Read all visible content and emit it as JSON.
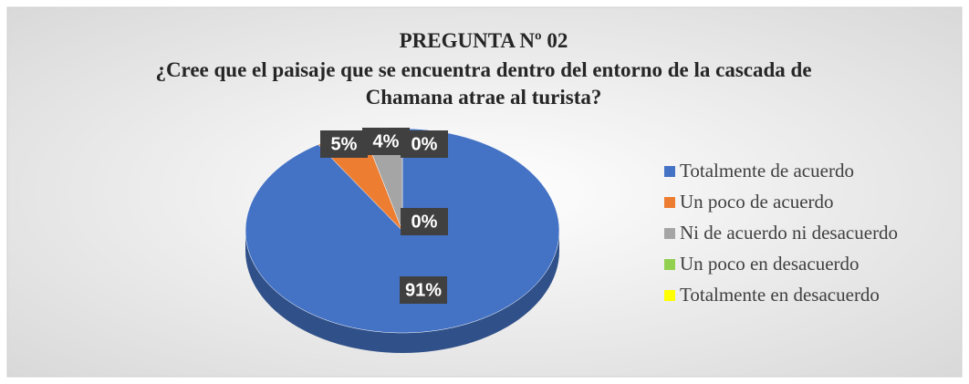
{
  "chart_data": {
    "type": "pie3d",
    "title": "PREGUNTA Nº 02",
    "subtitle": "¿Cree que el paisaje que se encuentra dentro del entorno de la cascada de Chamana atrae al turista?",
    "categories": [
      "Totalmente de acuerdo",
      "Un poco de acuerdo",
      "Ni de acuerdo ni desacuerdo",
      "Un poco en desacuerdo",
      "Totalmente en desacuerdo"
    ],
    "values": [
      91,
      5,
      4,
      0,
      0
    ],
    "value_labels": [
      "91%",
      "5%",
      "4%",
      "0%",
      "0%"
    ],
    "colors": [
      "#4472c4",
      "#ed7d31",
      "#a5a5a5",
      "#92d050",
      "#ffff00"
    ],
    "legend": "right"
  }
}
